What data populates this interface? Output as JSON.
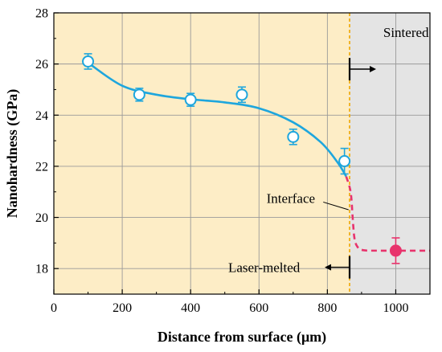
{
  "chart_data": {
    "type": "scatter",
    "xlabel": "Distance from surface (μm)",
    "ylabel": "Nanohardness (GPa)",
    "xlim": [
      0,
      1100
    ],
    "ylim": [
      17,
      28
    ],
    "x_ticks": [
      0,
      200,
      400,
      600,
      800,
      1000
    ],
    "y_ticks": [
      18,
      20,
      22,
      24,
      26,
      28
    ],
    "grid": true,
    "interface_x": 865,
    "regions": [
      {
        "label": "Laser-melted",
        "x_range": [
          0,
          865
        ],
        "color": "#fdedc6"
      },
      {
        "label": "Sintered",
        "x_range": [
          865,
          1100
        ],
        "color": "#e4e4e4"
      }
    ],
    "series": [
      {
        "region": "Laser-melted",
        "marker": "open-circle",
        "color": "#1ea6dd",
        "points": [
          {
            "x": 100,
            "y": 26.1,
            "err": 0.3
          },
          {
            "x": 250,
            "y": 24.8,
            "err": 0.25
          },
          {
            "x": 400,
            "y": 24.6,
            "err": 0.25
          },
          {
            "x": 550,
            "y": 24.8,
            "err": 0.3
          },
          {
            "x": 700,
            "y": 23.15,
            "err": 0.3
          },
          {
            "x": 850,
            "y": 22.2,
            "err": 0.5
          }
        ]
      },
      {
        "region": "Sintered",
        "marker": "filled-circle",
        "color": "#e8336c",
        "points": [
          {
            "x": 1000,
            "y": 18.7,
            "err": 0.5
          }
        ]
      }
    ],
    "fit_curve": {
      "color": "#1ea6dd",
      "points": [
        [
          100,
          26.05
        ],
        [
          200,
          25.15
        ],
        [
          300,
          24.8
        ],
        [
          400,
          24.62
        ],
        [
          500,
          24.5
        ],
        [
          600,
          24.27
        ],
        [
          700,
          23.72
        ],
        [
          780,
          22.95
        ],
        [
          830,
          22.15
        ],
        [
          855,
          21.6
        ]
      ]
    },
    "transition_curve": {
      "color": "#e8336c",
      "style": "dashed",
      "points": [
        [
          855,
          21.6
        ],
        [
          868,
          21.0
        ],
        [
          874,
          20.0
        ],
        [
          879,
          19.2
        ],
        [
          888,
          18.85
        ],
        [
          905,
          18.72
        ],
        [
          960,
          18.7
        ],
        [
          1100,
          18.7
        ]
      ]
    },
    "annotations": {
      "interface": "Interface",
      "sintered": "Sintered",
      "laser_melted": "Laser-melted"
    }
  },
  "colors": {
    "melted_bg": "#fdedc6",
    "sintered_bg": "#e4e4e4",
    "interface_line": "#f0a800",
    "blue": "#1ea6dd",
    "pink": "#e8336c",
    "grid": "#9a9a9a"
  }
}
